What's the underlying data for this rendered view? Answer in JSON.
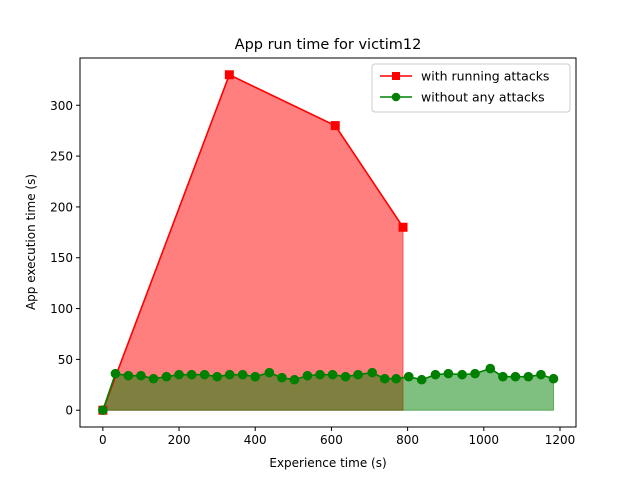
{
  "chart_data": {
    "type": "line",
    "title": "App run time for victim12",
    "xlabel": "Experience time (s)",
    "ylabel": "App execution time  (s)",
    "xlim": [
      -60,
      1242
    ],
    "ylim": [
      -16.5,
      346.5
    ],
    "xticks": [
      0,
      200,
      400,
      600,
      800,
      1000,
      1200
    ],
    "yticks": [
      0,
      50,
      100,
      150,
      200,
      250,
      300
    ],
    "grid": false,
    "legend_position": "top-right",
    "filled_area": true,
    "series": [
      {
        "name": "with running attacks",
        "color": "#ff0000",
        "fill_color": "#ff0000",
        "marker": "square",
        "x": [
          0,
          332,
          610,
          788
        ],
        "y": [
          0,
          330,
          280,
          180
        ]
      },
      {
        "name": "without any attacks",
        "color": "#008000",
        "fill_color": "#008000",
        "marker": "circle",
        "x": [
          0,
          33,
          67,
          100,
          133,
          167,
          200,
          233,
          267,
          300,
          333,
          367,
          400,
          437,
          470,
          503,
          537,
          570,
          603,
          637,
          670,
          707,
          740,
          770,
          803,
          837,
          873,
          907,
          943,
          977,
          1017,
          1050,
          1083,
          1117,
          1150,
          1183
        ],
        "y": [
          0,
          36,
          34,
          34,
          31,
          33,
          35,
          35,
          35,
          33,
          35,
          35,
          33,
          37,
          32,
          30,
          34,
          35,
          35,
          33,
          35,
          37,
          31,
          31,
          33,
          30,
          35,
          36,
          35,
          36,
          41,
          33,
          33,
          33,
          35,
          31
        ]
      }
    ]
  }
}
